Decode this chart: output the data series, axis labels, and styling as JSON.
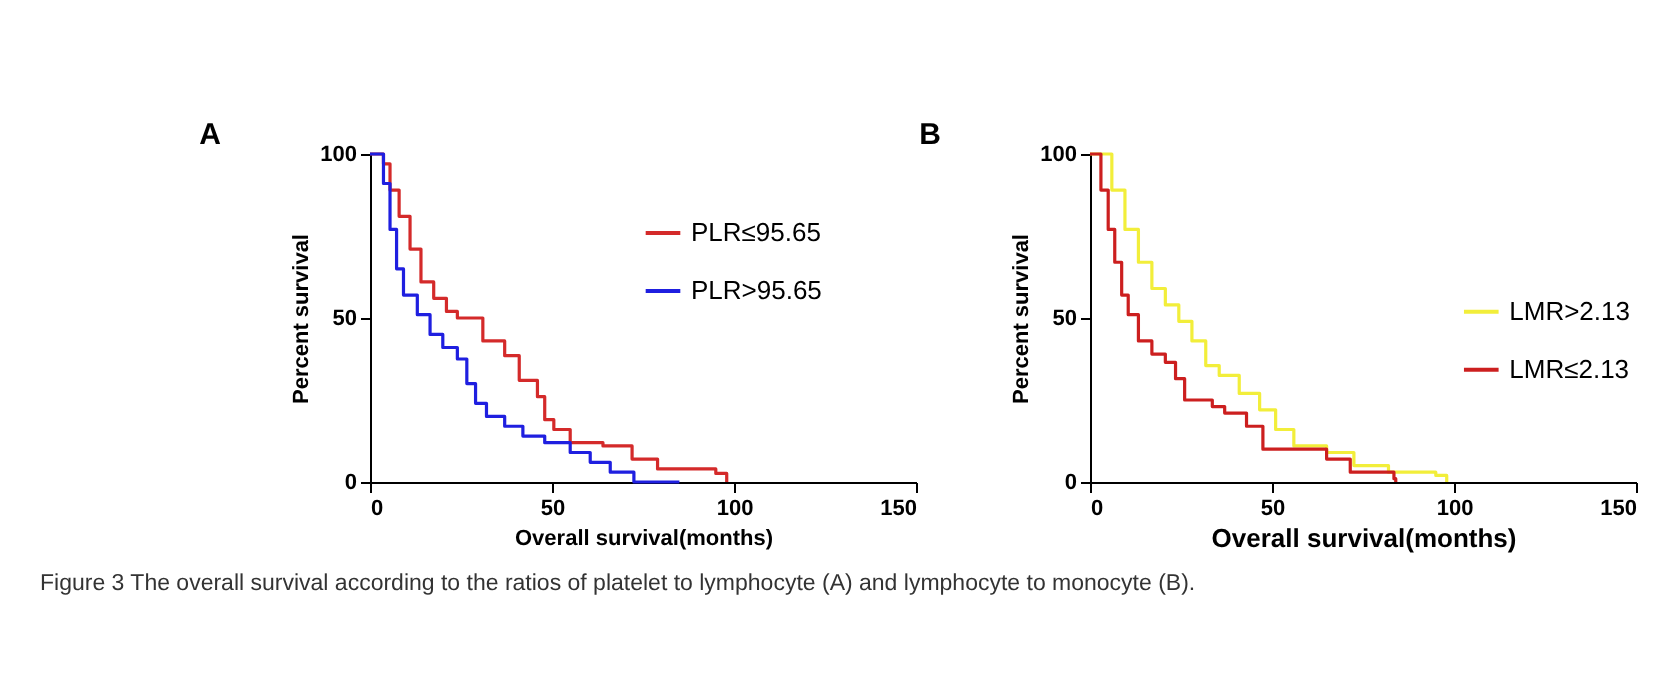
{
  "chart_data": [
    {
      "type": "step",
      "title": "A",
      "xlabel": "Overall survival(months)",
      "ylabel": "Percent survival",
      "xlim": [
        0,
        150
      ],
      "xticks": [
        0,
        50,
        100,
        150
      ],
      "ylim": [
        0,
        100
      ],
      "yticks": [
        0,
        50,
        100
      ],
      "grid": false,
      "legend": "top right",
      "line_style": "solid",
      "series": [
        {
          "name": "PLR≤95.65",
          "color": "#d42a2a",
          "x": [
            0,
            3.7,
            5.5,
            8,
            11,
            14,
            17.5,
            21,
            24,
            31,
            37,
            41,
            46,
            48,
            50.5,
            55,
            64,
            72,
            79,
            95,
            98
          ],
          "values": [
            100,
            97,
            89,
            81,
            71,
            61,
            56,
            52,
            50,
            43,
            38.5,
            31,
            26,
            19,
            16,
            12,
            11,
            7,
            4,
            2.6,
            0
          ]
        },
        {
          "name": "PLR>95.65",
          "color": "#1f1fe0",
          "x": [
            0,
            1.8,
            3.7,
            5.5,
            7.3,
            9.2,
            13,
            16.5,
            20,
            24,
            26.6,
            29,
            32,
            37,
            42,
            48,
            55,
            60.5,
            66,
            72.5,
            85
          ],
          "values": [
            100,
            100,
            91,
            77,
            65,
            57,
            51,
            45,
            41,
            37.5,
            30,
            24,
            20,
            17,
            14,
            12,
            9,
            6,
            3,
            0,
            0
          ]
        }
      ]
    },
    {
      "type": "step",
      "title": "B",
      "xlabel": "Overall survival(months)",
      "ylabel": "Percent survival",
      "xlim": [
        0,
        150
      ],
      "xticks": [
        0,
        50,
        100,
        150
      ],
      "ylim": [
        0,
        100
      ],
      "yticks": [
        0,
        50,
        100
      ],
      "grid": false,
      "legend": "right",
      "line_style": "solid",
      "series": [
        {
          "name": "LMR>2.13",
          "color": "#f2ee3a",
          "x": [
            0,
            3,
            6,
            9.6,
            13.3,
            17,
            20.7,
            24.4,
            28,
            31.8,
            35.5,
            41,
            46.6,
            51,
            56,
            65,
            72.5,
            82,
            95,
            98
          ],
          "values": [
            100,
            100,
            89,
            77,
            67,
            59,
            54,
            49,
            43,
            35.5,
            32.5,
            27,
            22,
            16,
            11,
            9,
            5,
            3,
            2,
            0
          ]
        },
        {
          "name": "LMR≤2.13",
          "color": "#cc1f1f",
          "x": [
            0,
            1.3,
            3,
            5,
            6.8,
            8.7,
            10.5,
            13.3,
            17,
            20.7,
            23.5,
            26,
            33.6,
            37,
            43,
            47.5,
            59.5,
            65,
            71.5,
            83.5,
            84
          ],
          "values": [
            100,
            100,
            89,
            77,
            67,
            57,
            51,
            43,
            39,
            36.5,
            31.5,
            25,
            23,
            21,
            17,
            10,
            10,
            7,
            3,
            1,
            0
          ]
        }
      ],
      "annotations": [
        "Figure 3 The overall survival according to the ratios of platelet to lymphocyte (A) and lymphocyte to monocyte (B)."
      ]
    }
  ]
}
